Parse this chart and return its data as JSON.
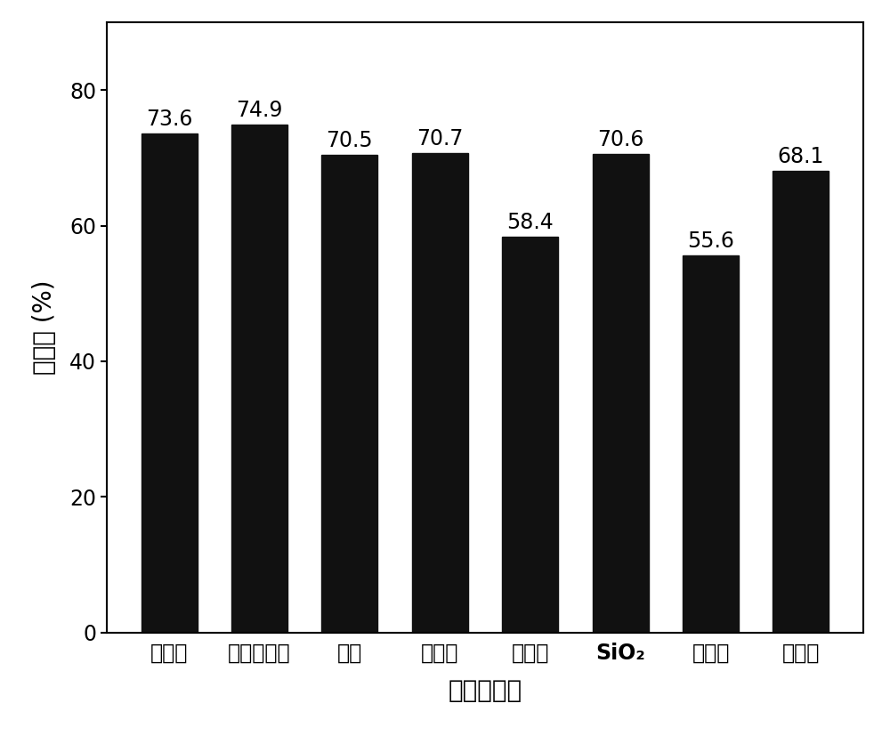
{
  "categories": [
    "钠长石",
    "煅烧白云石",
    "沸石",
    "海泡石",
    "白云石",
    "SiO₂",
    "蒙脱石",
    "钾长石"
  ],
  "sio2_index": 5,
  "values": [
    73.6,
    74.9,
    70.5,
    70.7,
    58.4,
    70.6,
    55.6,
    68.1
  ],
  "bar_color": "#111111",
  "ylabel": "降解率 (%)",
  "xlabel": "添加剂种类",
  "ylim": [
    0,
    90
  ],
  "yticks": [
    0,
    20,
    40,
    60,
    80
  ],
  "label_fontsize": 20,
  "tick_fontsize": 17,
  "value_fontsize": 17,
  "bar_width": 0.62,
  "background_color": "#ffffff",
  "figsize": [
    10.0,
    8.36
  ],
  "dpi": 100
}
